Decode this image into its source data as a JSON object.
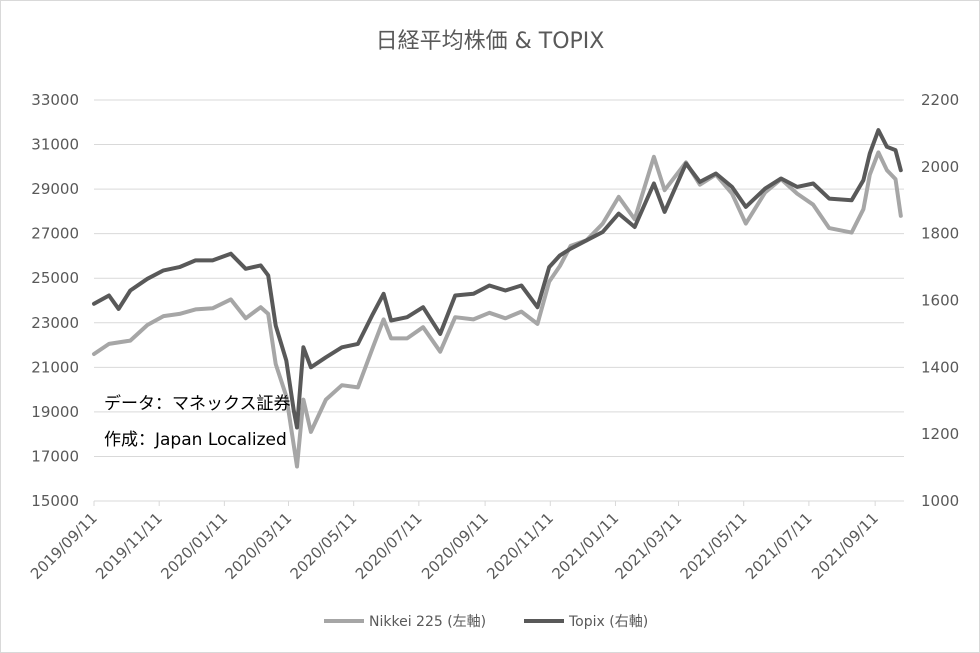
{
  "chart_data": {
    "type": "line",
    "title": "日経平均株価 & TOPIX",
    "x_tick_labels": [
      "2019/09/11",
      "2019/11/11",
      "2020/01/11",
      "2020/03/11",
      "2020/05/11",
      "2020/07/11",
      "2020/09/11",
      "2020/11/11",
      "2021/01/11",
      "2021/03/11",
      "2021/05/11",
      "2021/07/11",
      "2021/09/11"
    ],
    "y_left": {
      "ticks": [
        "33000",
        "31000",
        "29000",
        "27000",
        "25000",
        "23000",
        "21000",
        "19000",
        "17000",
        "15000"
      ],
      "min": 15000,
      "max": 33000
    },
    "y_right": {
      "ticks": [
        "2200",
        "2000",
        "1800",
        "1600",
        "1400",
        "1200",
        "1000"
      ],
      "min": 1000,
      "max": 2200
    },
    "annotations": [
      "データ：マネックス証券",
      "作成：Japan Localized"
    ],
    "legend_position": "bottom",
    "series": [
      {
        "name": "Nikkei 225 (左軸)",
        "axis": "left",
        "color": "#a6a6a6",
        "points": [
          [
            "2019-09-11",
            21600
          ],
          [
            "2019-09-25",
            22050
          ],
          [
            "2019-10-15",
            22200
          ],
          [
            "2019-10-31",
            22900
          ],
          [
            "2019-11-15",
            23300
          ],
          [
            "2019-11-30",
            23400
          ],
          [
            "2019-12-15",
            23600
          ],
          [
            "2019-12-31",
            23650
          ],
          [
            "2020-01-17",
            24050
          ],
          [
            "2020-01-31",
            23200
          ],
          [
            "2020-02-14",
            23700
          ],
          [
            "2020-02-21",
            23400
          ],
          [
            "2020-02-28",
            21150
          ],
          [
            "2020-03-09",
            19700
          ],
          [
            "2020-03-19",
            16550
          ],
          [
            "2020-03-25",
            19550
          ],
          [
            "2020-04-01",
            18100
          ],
          [
            "2020-04-15",
            19550
          ],
          [
            "2020-04-30",
            20200
          ],
          [
            "2020-05-15",
            20100
          ],
          [
            "2020-05-29",
            21900
          ],
          [
            "2020-06-08",
            23150
          ],
          [
            "2020-06-15",
            22300
          ],
          [
            "2020-06-30",
            22300
          ],
          [
            "2020-07-15",
            22800
          ],
          [
            "2020-07-31",
            21700
          ],
          [
            "2020-08-14",
            23250
          ],
          [
            "2020-08-31",
            23150
          ],
          [
            "2020-09-15",
            23450
          ],
          [
            "2020-09-30",
            23200
          ],
          [
            "2020-10-15",
            23500
          ],
          [
            "2020-10-30",
            22950
          ],
          [
            "2020-11-10",
            24850
          ],
          [
            "2020-11-20",
            25550
          ],
          [
            "2020-11-30",
            26450
          ],
          [
            "2020-12-15",
            26700
          ],
          [
            "2020-12-30",
            27450
          ],
          [
            "2021-01-14",
            28650
          ],
          [
            "2021-01-29",
            27650
          ],
          [
            "2021-02-16",
            30450
          ],
          [
            "2021-02-26",
            28950
          ],
          [
            "2021-03-18",
            30200
          ],
          [
            "2021-03-31",
            29200
          ],
          [
            "2021-04-15",
            29650
          ],
          [
            "2021-04-30",
            28800
          ],
          [
            "2021-05-13",
            27450
          ],
          [
            "2021-05-31",
            28850
          ],
          [
            "2021-06-15",
            29450
          ],
          [
            "2021-06-30",
            28800
          ],
          [
            "2021-07-15",
            28300
          ],
          [
            "2021-07-30",
            27250
          ],
          [
            "2021-08-20",
            27050
          ],
          [
            "2021-08-31",
            28100
          ],
          [
            "2021-09-06",
            29650
          ],
          [
            "2021-09-14",
            30650
          ],
          [
            "2021-09-22",
            29850
          ],
          [
            "2021-09-30",
            29450
          ],
          [
            "2021-10-05",
            27800
          ]
        ]
      },
      {
        "name": "Topix (右軸)",
        "axis": "right",
        "color": "#595959",
        "points": [
          [
            "2019-09-11",
            1590
          ],
          [
            "2019-09-25",
            1615
          ],
          [
            "2019-10-04",
            1575
          ],
          [
            "2019-10-15",
            1630
          ],
          [
            "2019-10-31",
            1665
          ],
          [
            "2019-11-15",
            1690
          ],
          [
            "2019-11-30",
            1700
          ],
          [
            "2019-12-15",
            1720
          ],
          [
            "2019-12-31",
            1720
          ],
          [
            "2020-01-17",
            1740
          ],
          [
            "2020-01-31",
            1695
          ],
          [
            "2020-02-14",
            1705
          ],
          [
            "2020-02-21",
            1675
          ],
          [
            "2020-02-28",
            1525
          ],
          [
            "2020-03-09",
            1420
          ],
          [
            "2020-03-16",
            1270
          ],
          [
            "2020-03-19",
            1220
          ],
          [
            "2020-03-25",
            1460
          ],
          [
            "2020-04-01",
            1400
          ],
          [
            "2020-04-15",
            1430
          ],
          [
            "2020-04-30",
            1460
          ],
          [
            "2020-05-15",
            1470
          ],
          [
            "2020-05-29",
            1560
          ],
          [
            "2020-06-08",
            1620
          ],
          [
            "2020-06-15",
            1540
          ],
          [
            "2020-06-30",
            1550
          ],
          [
            "2020-07-15",
            1580
          ],
          [
            "2020-07-31",
            1500
          ],
          [
            "2020-08-14",
            1615
          ],
          [
            "2020-08-31",
            1620
          ],
          [
            "2020-09-15",
            1645
          ],
          [
            "2020-09-30",
            1630
          ],
          [
            "2020-10-15",
            1645
          ],
          [
            "2020-10-30",
            1580
          ],
          [
            "2020-11-10",
            1700
          ],
          [
            "2020-11-20",
            1735
          ],
          [
            "2020-11-30",
            1755
          ],
          [
            "2020-12-15",
            1780
          ],
          [
            "2020-12-30",
            1805
          ],
          [
            "2021-01-14",
            1860
          ],
          [
            "2021-01-29",
            1820
          ],
          [
            "2021-02-16",
            1950
          ],
          [
            "2021-02-26",
            1865
          ],
          [
            "2021-03-18",
            2010
          ],
          [
            "2021-03-31",
            1955
          ],
          [
            "2021-04-15",
            1980
          ],
          [
            "2021-04-30",
            1940
          ],
          [
            "2021-05-13",
            1880
          ],
          [
            "2021-05-31",
            1935
          ],
          [
            "2021-06-15",
            1965
          ],
          [
            "2021-06-30",
            1940
          ],
          [
            "2021-07-15",
            1950
          ],
          [
            "2021-07-30",
            1905
          ],
          [
            "2021-08-20",
            1900
          ],
          [
            "2021-08-31",
            1960
          ],
          [
            "2021-09-06",
            2040
          ],
          [
            "2021-09-14",
            2110
          ],
          [
            "2021-09-22",
            2060
          ],
          [
            "2021-09-30",
            2050
          ],
          [
            "2021-10-05",
            1990
          ]
        ]
      }
    ]
  }
}
